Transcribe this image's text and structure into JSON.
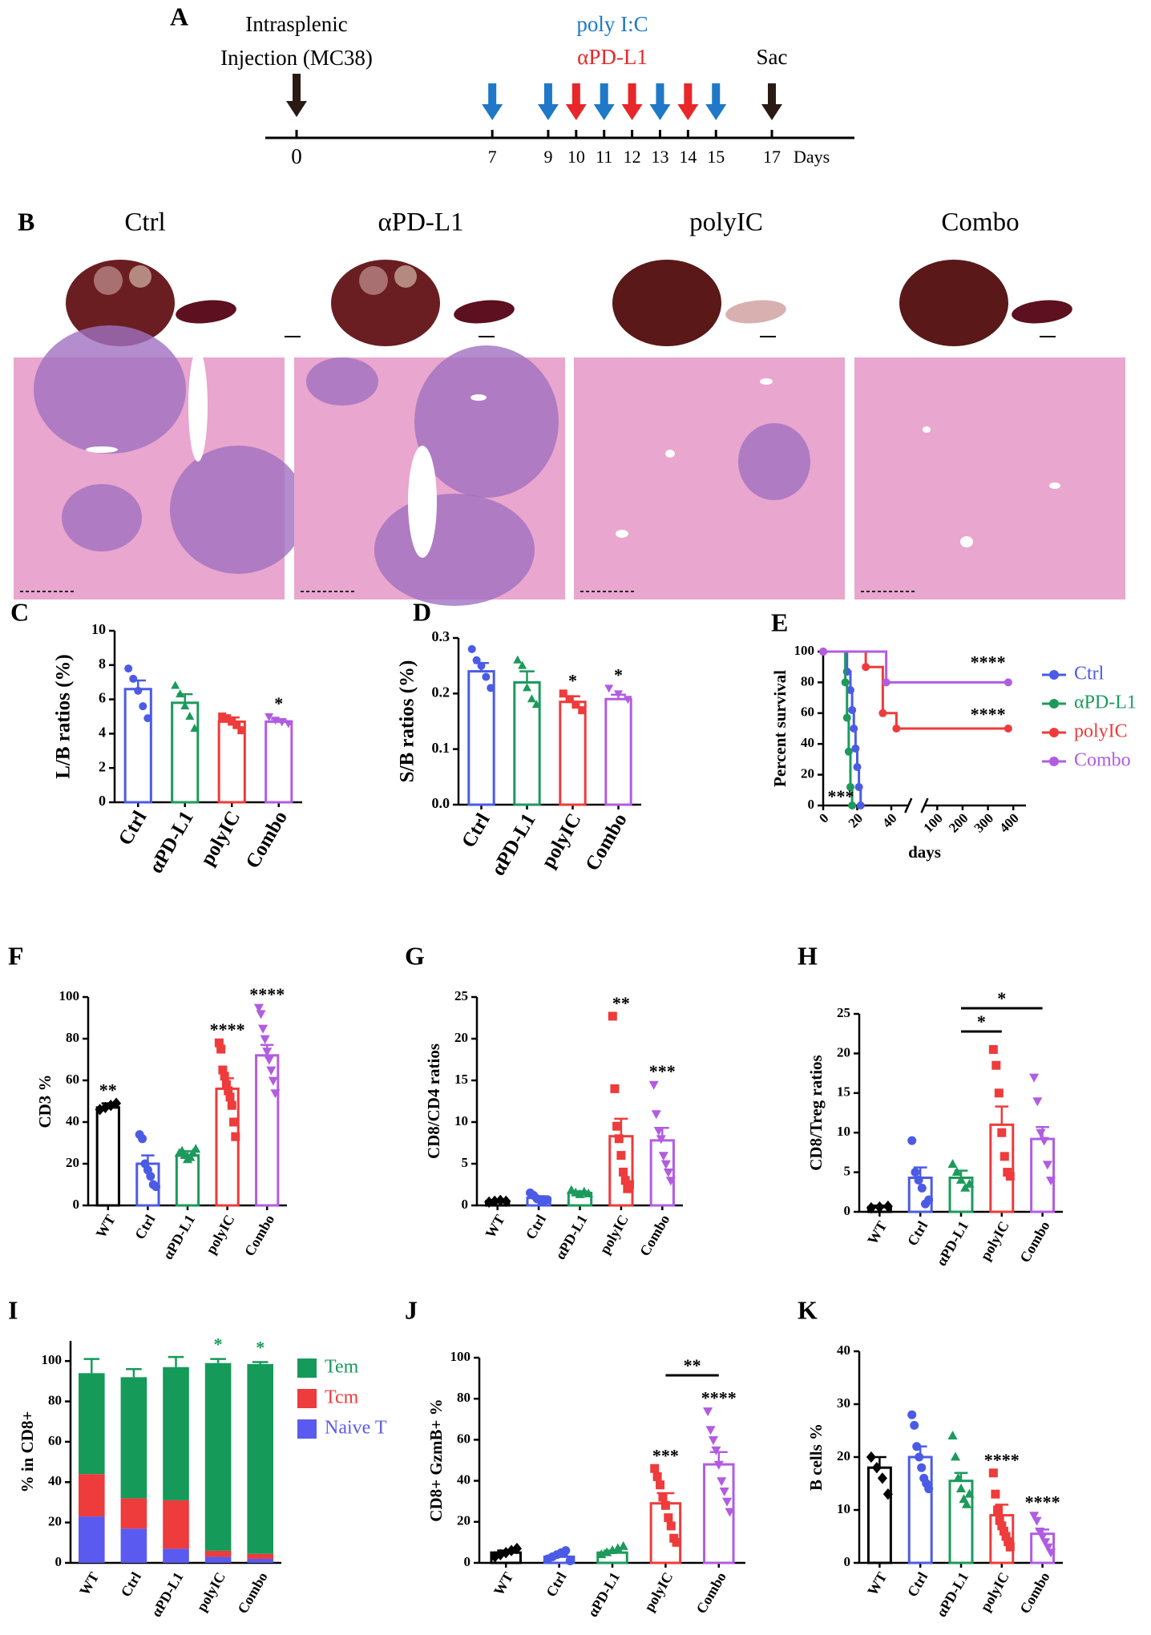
{
  "timeline": {
    "letter": "A",
    "ticks": [
      0,
      7,
      9,
      10,
      11,
      12,
      13,
      14,
      15,
      17
    ],
    "unit": "Days",
    "injection": {
      "label_lines": [
        "Intrasplenic",
        "Injection (MC38)"
      ],
      "day": 0
    },
    "polyic": {
      "label": "poly I:C",
      "color": "#1f78c8",
      "days": [
        7,
        9,
        11,
        13,
        15
      ]
    },
    "apdl1": {
      "label": "αPD-L1",
      "color": "#e8272a",
      "days": [
        10,
        12,
        14
      ]
    },
    "sac": {
      "label": "Sac",
      "day": 17
    }
  },
  "panel_b": {
    "letter": "B",
    "groups": [
      "Ctrl",
      "αPD-L1",
      "polyIC",
      "Combo"
    ]
  },
  "chart_data": [
    {
      "letter": "C",
      "type": "bar",
      "ylabel": "L/B ratios (%)",
      "categories": [
        "Ctrl",
        "αPD-L1",
        "polyIC",
        "Combo"
      ],
      "colors": [
        "#4b5be6",
        "#1c9a5c",
        "#ee3b3b",
        "#b15ce2"
      ],
      "values": [
        6.6,
        5.8,
        4.7,
        4.7
      ],
      "errors": [
        0.5,
        0.5,
        0.25,
        0.15
      ],
      "points": [
        [
          7.8,
          7.2,
          6.5,
          5.6,
          4.9
        ],
        [
          6.8,
          6.3,
          5.6,
          5.0,
          4.3
        ],
        [
          5.0,
          4.9,
          4.7,
          4.5,
          4.2
        ],
        [
          5.0,
          4.8,
          4.7,
          4.6
        ]
      ],
      "significance": [
        null,
        null,
        null,
        "*"
      ],
      "ylim": [
        0,
        10
      ],
      "yticks": [
        0,
        2,
        4,
        6,
        8,
        10
      ]
    },
    {
      "letter": "D",
      "type": "bar",
      "ylabel": "S/B ratios (%)",
      "categories": [
        "Ctrl",
        "αPD-L1",
        "polyIC",
        "Combo"
      ],
      "colors": [
        "#4b5be6",
        "#1c9a5c",
        "#ee3b3b",
        "#b15ce2"
      ],
      "values": [
        0.24,
        0.22,
        0.185,
        0.19
      ],
      "errors": [
        0.015,
        0.02,
        0.01,
        0.008
      ],
      "points": [
        [
          0.28,
          0.26,
          0.25,
          0.23,
          0.21
        ],
        [
          0.26,
          0.25,
          0.21,
          0.19,
          0.18
        ],
        [
          0.2,
          0.19,
          0.18,
          0.17
        ],
        [
          0.21,
          0.2,
          0.19
        ]
      ],
      "significance": [
        null,
        null,
        "*",
        "*"
      ],
      "ylim": [
        0,
        0.3
      ],
      "yticks": [
        {
          "value": 0,
          "label": "0.0"
        },
        0.1,
        0.2,
        0.3
      ]
    },
    {
      "letter": "E",
      "type": "survival",
      "ylabel": "Percent survival",
      "xlabel": "days",
      "series": [
        {
          "name": "Ctrl",
          "color": "#4b5be6",
          "x": [
            0,
            14,
            16,
            17,
            18,
            19,
            20,
            21,
            22
          ],
          "y": [
            100,
            87,
            75,
            62,
            50,
            37,
            25,
            12,
            0
          ]
        },
        {
          "name": "αPD-L1",
          "color": "#1c9a5c",
          "x": [
            0,
            13,
            14,
            15,
            16,
            17
          ],
          "y": [
            100,
            80,
            57,
            35,
            12,
            0
          ]
        },
        {
          "name": "polyIC",
          "color": "#ee3b3b",
          "x": [
            0,
            25,
            35,
            43,
            380
          ],
          "y": [
            100,
            90,
            60,
            50,
            50
          ]
        },
        {
          "name": "Combo",
          "color": "#b15ce2",
          "x": [
            0,
            37,
            380
          ],
          "y": [
            100,
            80,
            80
          ]
        }
      ],
      "annotations": [
        "****",
        "****",
        "***"
      ],
      "xlim": [
        0,
        450
      ],
      "xbreak": 50,
      "xticks": [
        0,
        20,
        40,
        100,
        200,
        300,
        400
      ],
      "ylim": [
        0,
        100
      ],
      "yticks": [
        0,
        20,
        40,
        60,
        80,
        100
      ],
      "legend": "right"
    },
    {
      "letter": "F",
      "type": "bar",
      "ylabel": "CD3 %",
      "categories": [
        "WT",
        "Ctrl",
        "αPD-L1",
        "polyIC",
        "Combo"
      ],
      "colors": [
        "#000000",
        "#4b5be6",
        "#1c9a5c",
        "#ee3b3b",
        "#b15ce2"
      ],
      "values": [
        47,
        20,
        24,
        56,
        72
      ],
      "errors": [
        2,
        4,
        2,
        5,
        5
      ],
      "points": [
        [
          46,
          47,
          48,
          49
        ],
        [
          34,
          32,
          20,
          17,
          14,
          10,
          9
        ],
        [
          25,
          26,
          24,
          22,
          23,
          25,
          27
        ],
        [
          78,
          75,
          65,
          62,
          58,
          55,
          52,
          48,
          40,
          33
        ],
        [
          95,
          92,
          85,
          80,
          74,
          70,
          65,
          60,
          54
        ]
      ],
      "significance": [
        "**",
        null,
        null,
        "****",
        "****"
      ],
      "ylim": [
        0,
        100
      ],
      "yticks": [
        0,
        20,
        40,
        60,
        80,
        100
      ]
    },
    {
      "letter": "G",
      "type": "bar",
      "ylabel": "CD8/CD4 ratios",
      "categories": [
        "WT",
        "Ctrl",
        "αPD-L1",
        "polyIC",
        "Combo"
      ],
      "colors": [
        "#000000",
        "#4b5be6",
        "#1c9a5c",
        "#ee3b3b",
        "#b15ce2"
      ],
      "values": [
        0.5,
        0.9,
        1.5,
        8.3,
        7.8
      ],
      "errors": [
        0.1,
        0.2,
        0.2,
        2.1,
        1.5
      ],
      "points": [
        [
          0.4,
          0.5,
          0.6,
          0.5
        ],
        [
          1.5,
          1.2,
          0.8,
          0.6,
          0.5,
          0.7
        ],
        [
          1.8,
          1.5,
          1.3,
          1.6,
          1.4
        ],
        [
          22.7,
          14,
          9.5,
          8,
          6,
          4,
          3,
          2,
          2.5
        ],
        [
          14.5,
          11,
          9,
          8,
          6,
          5,
          4,
          3
        ]
      ],
      "significance": [
        null,
        null,
        null,
        "**",
        "***"
      ],
      "ylim": [
        0,
        25
      ],
      "yticks": [
        0,
        5,
        10,
        15,
        20,
        25
      ]
    },
    {
      "letter": "H",
      "type": "bar",
      "ylabel": "CD8/Treg ratios",
      "categories": [
        "WT",
        "Ctrl",
        "αPD-L1",
        "polyIC",
        "Combo"
      ],
      "colors": [
        "#000000",
        "#4b5be6",
        "#1c9a5c",
        "#ee3b3b",
        "#b15ce2"
      ],
      "values": [
        0.6,
        4.3,
        4.3,
        11,
        9.2
      ],
      "errors": [
        0.2,
        1.3,
        0.9,
        2.3,
        1.5
      ],
      "points": [
        [
          0.5,
          0.6,
          0.7
        ],
        [
          9,
          5,
          4,
          3,
          1,
          1.5
        ],
        [
          6,
          5,
          4,
          3,
          3.5
        ],
        [
          20.5,
          18.5,
          15,
          10,
          7,
          5,
          4.5
        ],
        [
          17,
          14,
          10,
          9,
          6,
          4
        ]
      ],
      "significance": [
        null,
        null,
        null,
        null,
        null
      ],
      "brackets": [
        {
          "between": [
            "αPD-L1",
            "polyIC"
          ],
          "label": "*"
        },
        {
          "between": [
            "αPD-L1",
            "Combo"
          ],
          "label": "*"
        }
      ],
      "ylim": [
        0,
        25
      ],
      "yticks": [
        0,
        5,
        10,
        15,
        20,
        25
      ]
    },
    {
      "letter": "I",
      "type": "stacked_bar",
      "ylabel": "% in CD8+",
      "categories": [
        "WT",
        "Ctrl",
        "αPD-L1",
        "polyIC",
        "Combo"
      ],
      "series": [
        {
          "name": "Tem",
          "color": "#159a5a",
          "values": [
            50,
            60,
            66,
            93,
            94
          ],
          "errors": [
            7,
            4,
            5,
            2,
            1
          ]
        },
        {
          "name": "Tcm",
          "color": "#ee3b3b",
          "values": [
            21,
            15,
            24,
            3,
            2.5
          ],
          "errors": [
            3,
            4,
            3,
            1,
            1
          ]
        },
        {
          "name": "Naive T",
          "color": "#5a5af0",
          "values": [
            23,
            17,
            7,
            3,
            2
          ],
          "errors": [
            5,
            6,
            3,
            1,
            1
          ]
        }
      ],
      "significance": [
        null,
        null,
        null,
        "*",
        "*"
      ],
      "significance_color": "#159a5a",
      "ylim": [
        0,
        110
      ],
      "yticks": [
        0,
        20,
        40,
        60,
        80,
        100
      ],
      "legend": "right"
    },
    {
      "letter": "J",
      "type": "bar",
      "ylabel": "CD8+ GzmB+ %",
      "categories": [
        "WT",
        "Ctrl",
        "αPD-L1",
        "polyIC",
        "Combo"
      ],
      "colors": [
        "#000000",
        "#4b5be6",
        "#1c9a5c",
        "#ee3b3b",
        "#b15ce2"
      ],
      "values": [
        5,
        3,
        5,
        29,
        48
      ],
      "errors": [
        1,
        1,
        1,
        5,
        6
      ],
      "points": [
        [
          3,
          4,
          5,
          6,
          7
        ],
        [
          2,
          3,
          4,
          5,
          6,
          1
        ],
        [
          4,
          5,
          6,
          7,
          8
        ],
        [
          46,
          42,
          38,
          32,
          28,
          22,
          18,
          12,
          10
        ],
        [
          74,
          65,
          60,
          55,
          48,
          40,
          35,
          30,
          25
        ]
      ],
      "significance": [
        null,
        null,
        null,
        "***",
        "****"
      ],
      "brackets": [
        {
          "between": [
            "polyIC",
            "Combo"
          ],
          "label": "**"
        }
      ],
      "ylim": [
        0,
        100
      ],
      "yticks": [
        0,
        20,
        40,
        60,
        80,
        100
      ]
    },
    {
      "letter": "K",
      "type": "bar",
      "ylabel": "B cells %",
      "categories": [
        "WT",
        "Ctrl",
        "αPD-L1",
        "polyIC",
        "Combo"
      ],
      "colors": [
        "#000000",
        "#4b5be6",
        "#1c9a5c",
        "#ee3b3b",
        "#b15ce2"
      ],
      "values": [
        18,
        20,
        15.5,
        9,
        5.5
      ],
      "errors": [
        2,
        2,
        1.5,
        2,
        0.8
      ],
      "points": [
        [
          20,
          18,
          16,
          13
        ],
        [
          28,
          26,
          22,
          20,
          18,
          16,
          15,
          14
        ],
        [
          24,
          20,
          16,
          14,
          12,
          11,
          13
        ],
        [
          17,
          13,
          10,
          8,
          7,
          6,
          5,
          4,
          3
        ],
        [
          9,
          8,
          6,
          5,
          4,
          3,
          2
        ]
      ],
      "significance": [
        null,
        null,
        null,
        "****",
        "****"
      ],
      "ylim": [
        0,
        40
      ],
      "yticks": [
        0,
        10,
        20,
        30,
        40
      ]
    }
  ]
}
